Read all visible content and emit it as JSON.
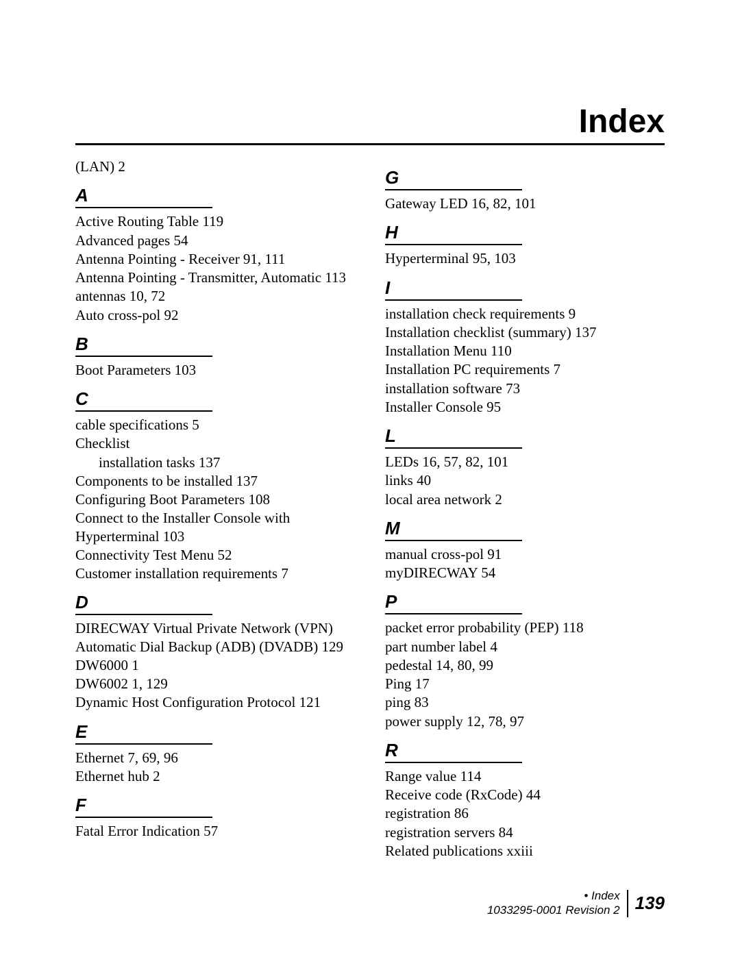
{
  "page": {
    "title": "Index",
    "footer": {
      "section": "• Index",
      "doc": "1033295-0001  Revision 2",
      "page_number": "139"
    }
  },
  "left_column": {
    "pre_entry": "(LAN)  2",
    "sections": [
      {
        "letter": "A",
        "entries": [
          {
            "text": "Active Routing Table  119"
          },
          {
            "text": "Advanced pages  54"
          },
          {
            "text": "Antenna Pointing - Receiver  91,  111"
          },
          {
            "text": "Antenna Pointing - Transmitter, Automatic  113"
          },
          {
            "text": "antennas  10,  72"
          },
          {
            "text": "Auto cross-pol  92"
          }
        ]
      },
      {
        "letter": "B",
        "entries": [
          {
            "text": "Boot Parameters  103"
          }
        ]
      },
      {
        "letter": "C",
        "entries": [
          {
            "text": "cable specifications  5"
          },
          {
            "text": "Checklist"
          },
          {
            "text": "installation tasks  137",
            "sub": true
          },
          {
            "text": "Components to be installed  137"
          },
          {
            "text": "Configuring Boot Parameters  108"
          },
          {
            "text": "Connect to the Installer Console with Hyperterminal  103"
          },
          {
            "text": "Connectivity Test Menu  52"
          },
          {
            "text": "Customer installation requirements  7"
          }
        ]
      },
      {
        "letter": "D",
        "entries": [
          {
            "text": "DIRECWAY Virtual Private Network (VPN) Automatic Dial Backup (ADB) (DVADB)  129"
          },
          {
            "text": "DW6000  1"
          },
          {
            "text": "DW6002  1,  129"
          },
          {
            "text": "Dynamic Host Configuration Protocol  121"
          }
        ]
      },
      {
        "letter": "E",
        "entries": [
          {
            "text": "Ethernet  7,  69,  96"
          },
          {
            "text": "Ethernet hub  2"
          }
        ]
      },
      {
        "letter": "F",
        "entries": [
          {
            "text": "Fatal Error Indication  57"
          }
        ]
      }
    ]
  },
  "right_column": {
    "sections": [
      {
        "letter": "G",
        "entries": [
          {
            "text": "Gateway LED  16,  82,  101"
          }
        ]
      },
      {
        "letter": "H",
        "entries": [
          {
            "text": "Hyperterminal  95,  103"
          }
        ]
      },
      {
        "letter": "I",
        "entries": [
          {
            "text": "installation check requirements  9"
          },
          {
            "text": "Installation checklist (summary)  137"
          },
          {
            "text": "Installation Menu  110"
          },
          {
            "text": "Installation PC requirements  7"
          },
          {
            "text": "installation software  73"
          },
          {
            "text": "Installer Console  95"
          }
        ]
      },
      {
        "letter": "L",
        "entries": [
          {
            "text": "LEDs  16,  57,  82,  101"
          },
          {
            "text": "links  40"
          },
          {
            "text": "local area network  2"
          }
        ]
      },
      {
        "letter": "M",
        "entries": [
          {
            "text": "manual cross-pol  91"
          },
          {
            "text": "myDIRECWAY  54"
          }
        ]
      },
      {
        "letter": "P",
        "entries": [
          {
            "text": "packet error probability (PEP)  118"
          },
          {
            "text": "part number label  4"
          },
          {
            "text": "pedestal  14,  80,  99"
          },
          {
            "text": "Ping  17"
          },
          {
            "text": "ping  83"
          },
          {
            "text": "power supply  12,  78,  97"
          }
        ]
      },
      {
        "letter": "R",
        "entries": [
          {
            "text": "Range value  114"
          },
          {
            "text": "Receive code (RxCode)  44"
          },
          {
            "text": "registration  86"
          },
          {
            "text": "registration servers  84"
          },
          {
            "text": "Related publications  xxiii"
          }
        ]
      }
    ]
  }
}
